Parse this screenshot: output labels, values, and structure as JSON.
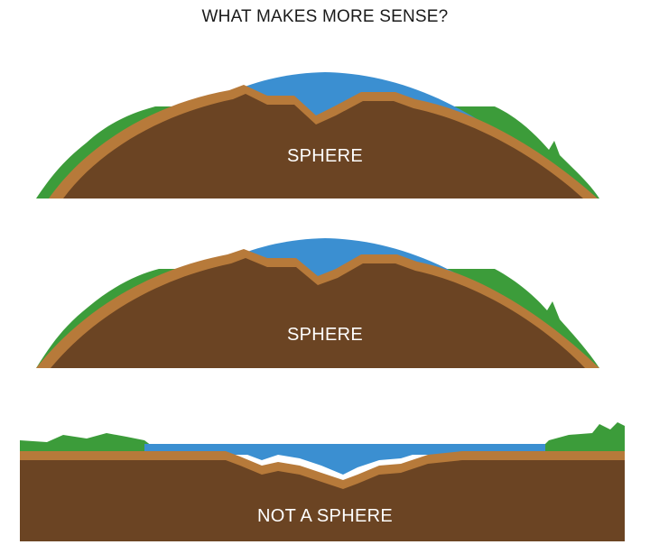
{
  "title": "WHAT MAKES MORE SENSE?",
  "panels": [
    {
      "label": "SPHERE"
    },
    {
      "label": "SPHERE"
    },
    {
      "label": "NOT A SPHERE"
    }
  ],
  "colors": {
    "water": "#3b8fd1",
    "land": "#3c9c3a",
    "crust": "#b77a3a",
    "earth": "#6b4423",
    "label_text": "#ffffff",
    "title_text": "#1a1a1a"
  }
}
